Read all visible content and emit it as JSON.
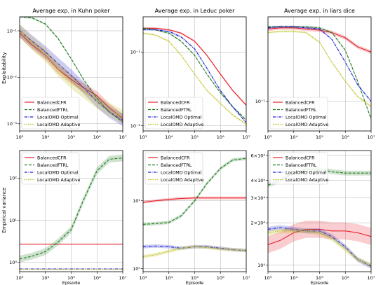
{
  "figure": {
    "ylabel_top": "Exploitability",
    "ylabel_bottom": "Empirical variance",
    "xlabel": "Episode"
  },
  "colors": {
    "BalancedCFR": "#e8202a",
    "BalancedFTRL": "#1e7a1e",
    "LocalOMD Optimal": "#1f1fd0",
    "LocalOMD Adaptive": "#b8b800"
  },
  "chart_data": [
    {
      "type": "line",
      "title": "Average exp. in Kuhn poker",
      "xscale": "log",
      "yscale": "log",
      "xlim": [
        1000,
        10000000
      ],
      "ylim": [
        0.0007,
        0.2
      ],
      "xticks": [
        {
          "v": 1000,
          "label": "10³"
        },
        {
          "v": 10000,
          "label": "10⁴"
        },
        {
          "v": 100000,
          "label": "10⁵"
        },
        {
          "v": 1000000,
          "label": "10⁶"
        },
        {
          "v": 10000000,
          "label": "10⁷"
        }
      ],
      "yticks": [
        {
          "v": 0.001,
          "label": "10⁻³"
        },
        {
          "v": 0.01,
          "label": "10⁻²"
        },
        {
          "v": 0.1,
          "label": "10⁻¹"
        }
      ],
      "grid": true,
      "legend": "lower-left",
      "series": [
        {
          "name": "BalancedCFR",
          "style": "solid",
          "band": 0.25,
          "x": [
            1000,
            3000,
            10000,
            30000,
            100000,
            300000,
            1000000,
            3000000,
            10000000
          ],
          "y": [
            0.09,
            0.05,
            0.03,
            0.015,
            0.009,
            0.006,
            0.004,
            0.0022,
            0.0013
          ]
        },
        {
          "name": "BalancedFTRL",
          "style": "dashed",
          "band": 0.05,
          "x": [
            1000,
            3000,
            10000,
            30000,
            100000,
            300000,
            1000000,
            3000000,
            10000000
          ],
          "y": [
            0.2,
            0.19,
            0.14,
            0.07,
            0.025,
            0.009,
            0.0035,
            0.0018,
            0.0011
          ]
        },
        {
          "name": "LocalOMD Optimal",
          "style": "dashdot",
          "band": 0.35,
          "x": [
            1000,
            3000,
            10000,
            30000,
            100000,
            300000,
            1000000,
            3000000,
            10000000
          ],
          "y": [
            0.1,
            0.06,
            0.035,
            0.02,
            0.011,
            0.006,
            0.003,
            0.0018,
            0.0012
          ]
        },
        {
          "name": "LocalOMD Adaptive",
          "style": "dotted",
          "band": 0.4,
          "x": [
            1000,
            3000,
            10000,
            30000,
            100000,
            300000,
            1000000,
            3000000,
            10000000
          ],
          "y": [
            0.1,
            0.055,
            0.03,
            0.015,
            0.008,
            0.005,
            0.003,
            0.002,
            0.0014
          ]
        }
      ]
    },
    {
      "type": "line",
      "title": "Average exp. in Leduc poker",
      "xscale": "log",
      "yscale": "log",
      "xlim": [
        1000,
        10000000
      ],
      "ylim": [
        0.0085,
        0.3
      ],
      "xticks": [
        {
          "v": 1000,
          "label": "10³"
        },
        {
          "v": 10000,
          "label": "10⁴"
        },
        {
          "v": 100000,
          "label": "10⁵"
        },
        {
          "v": 1000000,
          "label": "10⁶"
        },
        {
          "v": 10000000,
          "label": "10⁷"
        }
      ],
      "yticks": [
        {
          "v": 0.01,
          "label": "10⁻²"
        },
        {
          "v": 0.1,
          "label": "10⁻¹"
        }
      ],
      "grid": true,
      "legend": "lower-left",
      "series": [
        {
          "name": "BalancedCFR",
          "style": "solid",
          "band": 0.03,
          "x": [
            1000,
            3000,
            10000,
            30000,
            100000,
            300000,
            1000000,
            3000000,
            10000000
          ],
          "y": [
            0.21,
            0.21,
            0.2,
            0.18,
            0.14,
            0.09,
            0.05,
            0.03,
            0.019
          ]
        },
        {
          "name": "BalancedFTRL",
          "style": "dashed",
          "band": 0.03,
          "x": [
            1000,
            3000,
            10000,
            30000,
            100000,
            300000,
            1000000,
            3000000,
            10000000
          ],
          "y": [
            0.21,
            0.2,
            0.18,
            0.14,
            0.09,
            0.05,
            0.028,
            0.018,
            0.012
          ]
        },
        {
          "name": "LocalOMD Optimal",
          "style": "dashdot",
          "band": 0.03,
          "x": [
            1000,
            3000,
            10000,
            30000,
            100000,
            300000,
            1000000,
            3000000,
            10000000
          ],
          "y": [
            0.2,
            0.2,
            0.19,
            0.16,
            0.11,
            0.06,
            0.03,
            0.018,
            0.011
          ]
        },
        {
          "name": "LocalOMD Adaptive",
          "style": "dotted",
          "band": 0.03,
          "x": [
            1000,
            3000,
            10000,
            30000,
            100000,
            300000,
            1000000,
            3000000,
            10000000
          ],
          "y": [
            0.18,
            0.17,
            0.14,
            0.09,
            0.05,
            0.03,
            0.02,
            0.014,
            0.0105
          ]
        }
      ]
    },
    {
      "type": "line",
      "title": "Average exp. in liars dice",
      "xscale": "log",
      "yscale": "log",
      "xlim": [
        1000,
        10000000
      ],
      "ylim": [
        0.055,
        0.55
      ],
      "xticks": [
        {
          "v": 1000,
          "label": "10³"
        },
        {
          "v": 10000,
          "label": "10⁴"
        },
        {
          "v": 100000,
          "label": "10⁵"
        },
        {
          "v": 1000000,
          "label": "10⁶"
        },
        {
          "v": 10000000,
          "label": "10⁷"
        }
      ],
      "yticks": [
        {
          "v": 0.1,
          "label": "10⁻¹"
        }
      ],
      "grid": true,
      "legend": "lower-left",
      "series": [
        {
          "name": "BalancedCFR",
          "style": "solid",
          "band": 0.04,
          "x": [
            1000,
            3000,
            10000,
            30000,
            100000,
            300000,
            1000000,
            3000000,
            10000000
          ],
          "y": [
            0.43,
            0.44,
            0.44,
            0.43,
            0.42,
            0.4,
            0.36,
            0.3,
            0.27
          ]
        },
        {
          "name": "BalancedFTRL",
          "style": "dashed",
          "band": 0.02,
          "x": [
            1000,
            3000,
            10000,
            30000,
            100000,
            300000,
            1000000,
            3000000,
            10000000
          ],
          "y": [
            0.45,
            0.45,
            0.45,
            0.45,
            0.44,
            0.4,
            0.28,
            0.15,
            0.07
          ]
        },
        {
          "name": "LocalOMD Optimal",
          "style": "dashdot",
          "band": 0.02,
          "x": [
            1000,
            3000,
            10000,
            30000,
            100000,
            300000,
            1000000,
            3000000,
            10000000
          ],
          "y": [
            0.44,
            0.45,
            0.45,
            0.44,
            0.43,
            0.35,
            0.22,
            0.14,
            0.1
          ]
        },
        {
          "name": "LocalOMD Adaptive",
          "style": "dotted",
          "band": 0.02,
          "x": [
            1000,
            3000,
            10000,
            30000,
            100000,
            300000,
            1000000,
            3000000,
            10000000
          ],
          "y": [
            0.4,
            0.41,
            0.41,
            0.4,
            0.33,
            0.22,
            0.15,
            0.11,
            0.09
          ]
        }
      ]
    },
    {
      "type": "line",
      "xscale": "log",
      "yscale": "log",
      "xlim": [
        1000,
        10000000
      ],
      "ylim": [
        0.6,
        450
      ],
      "xticks": [
        {
          "v": 1000,
          "label": "10³"
        },
        {
          "v": 10000,
          "label": "10⁴"
        },
        {
          "v": 100000,
          "label": "10⁵"
        },
        {
          "v": 1000000,
          "label": "10⁶"
        },
        {
          "v": 10000000,
          "label": "10⁷"
        }
      ],
      "yticks": [
        {
          "v": 1,
          "label": "10⁰"
        },
        {
          "v": 10,
          "label": "10¹"
        },
        {
          "v": 100,
          "label": "10²"
        }
      ],
      "grid": true,
      "legend": "upper-left",
      "series": [
        {
          "name": "BalancedCFR",
          "style": "solid",
          "band": 0.01,
          "x": [
            1000,
            3000,
            10000,
            30000,
            100000,
            300000,
            1000000,
            3000000,
            10000000
          ],
          "y": [
            2.7,
            2.7,
            2.7,
            2.7,
            2.7,
            2.7,
            2.7,
            2.7,
            2.7
          ]
        },
        {
          "name": "BalancedFTRL",
          "style": "dashed",
          "band": 0.2,
          "x": [
            1000,
            3000,
            10000,
            30000,
            100000,
            300000,
            1000000,
            3000000,
            10000000
          ],
          "y": [
            1.2,
            1.4,
            1.8,
            3,
            6,
            30,
            150,
            280,
            300
          ]
        },
        {
          "name": "LocalOMD Optimal",
          "style": "dashdot",
          "band": 0.01,
          "x": [
            1000,
            3000,
            10000,
            30000,
            100000,
            300000,
            1000000,
            3000000,
            10000000
          ],
          "y": [
            0.7,
            0.7,
            0.7,
            0.7,
            0.7,
            0.7,
            0.7,
            0.7,
            0.7
          ]
        },
        {
          "name": "LocalOMD Adaptive",
          "style": "dotted",
          "band": 0.01,
          "x": [
            1000,
            3000,
            10000,
            30000,
            100000,
            300000,
            1000000,
            3000000,
            10000000
          ],
          "y": [
            0.68,
            0.68,
            0.68,
            0.68,
            0.68,
            0.68,
            0.68,
            0.68,
            0.68
          ]
        }
      ]
    },
    {
      "type": "line",
      "xscale": "log",
      "yscale": "log",
      "xlim": [
        1000,
        10000000
      ],
      "ylim": [
        0.9,
        55
      ],
      "xticks": [
        {
          "v": 1000,
          "label": "10³"
        },
        {
          "v": 10000,
          "label": "10⁴"
        },
        {
          "v": 100000,
          "label": "10⁵"
        },
        {
          "v": 1000000,
          "label": "10⁶"
        },
        {
          "v": 10000000,
          "label": "10⁷"
        }
      ],
      "yticks": [
        {
          "v": 1,
          "label": "10⁰"
        },
        {
          "v": 10,
          "label": "10¹"
        }
      ],
      "grid": true,
      "legend": "upper-left",
      "series": [
        {
          "name": "BalancedCFR",
          "style": "solid",
          "band": 0.05,
          "x": [
            1000,
            3000,
            10000,
            30000,
            100000,
            300000,
            1000000,
            3000000,
            10000000
          ],
          "y": [
            9.5,
            10,
            10.5,
            10.8,
            11,
            11,
            11,
            11,
            11
          ]
        },
        {
          "name": "BalancedFTRL",
          "style": "dashed",
          "band": 0.06,
          "x": [
            1000,
            3000,
            10000,
            30000,
            100000,
            300000,
            1000000,
            3000000,
            10000000
          ],
          "y": [
            4.5,
            4.6,
            4.8,
            6,
            10,
            18,
            30,
            40,
            42
          ]
        },
        {
          "name": "LocalOMD Optimal",
          "style": "dashdot",
          "band": 0.06,
          "x": [
            1000,
            3000,
            10000,
            30000,
            100000,
            300000,
            1000000,
            3000000,
            10000000
          ],
          "y": [
            2.1,
            2.15,
            2.1,
            2.0,
            2.1,
            2.1,
            2.0,
            1.9,
            1.85
          ]
        },
        {
          "name": "LocalOMD Adaptive",
          "style": "dotted",
          "band": 0.06,
          "x": [
            1000,
            3000,
            10000,
            30000,
            100000,
            300000,
            1000000,
            3000000,
            10000000
          ],
          "y": [
            1.5,
            1.6,
            1.8,
            2.0,
            2.1,
            2.05,
            1.95,
            1.9,
            1.85
          ]
        }
      ]
    },
    {
      "type": "line",
      "xscale": "log",
      "yscale": "log",
      "xlim": [
        1000,
        10000000
      ],
      "ylim": [
        9000,
        65000
      ],
      "xticks": [
        {
          "v": 1000,
          "label": "10³"
        },
        {
          "v": 10000,
          "label": "10⁴"
        },
        {
          "v": 100000,
          "label": "10⁵"
        },
        {
          "v": 1000000,
          "label": "10⁶"
        },
        {
          "v": 10000000,
          "label": "10⁷"
        }
      ],
      "yticks": [
        {
          "v": 10000,
          "label": "10⁴"
        },
        {
          "v": 20000,
          "label": "2×10⁴"
        },
        {
          "v": 30000,
          "label": "3×10⁴"
        },
        {
          "v": 40000,
          "label": "4×10⁴"
        },
        {
          "v": 60000,
          "label": "6×10⁴"
        }
      ],
      "grid": true,
      "legend": "upper-left",
      "series": [
        {
          "name": "BalancedCFR",
          "style": "solid",
          "band": 0.15,
          "x": [
            1000,
            3000,
            10000,
            30000,
            100000,
            300000,
            1000000,
            3000000,
            10000000
          ],
          "y": [
            14000,
            15000,
            17000,
            18000,
            18000,
            17500,
            17500,
            17000,
            16000
          ]
        },
        {
          "name": "BalancedFTRL",
          "style": "dashed",
          "band": 0.04,
          "x": [
            1000,
            3000,
            10000,
            30000,
            100000,
            300000,
            1000000,
            3000000,
            10000000
          ],
          "y": [
            37000,
            40000,
            45000,
            48000,
            48000,
            46000,
            45000,
            45000,
            45000
          ]
        },
        {
          "name": "LocalOMD Optimal",
          "style": "dashdot",
          "band": 0.04,
          "x": [
            1000,
            3000,
            10000,
            30000,
            100000,
            300000,
            1000000,
            3000000,
            10000000
          ],
          "y": [
            18000,
            18500,
            18000,
            17500,
            17500,
            16000,
            13500,
            11000,
            9800
          ]
        },
        {
          "name": "LocalOMD Adaptive",
          "style": "dotted",
          "band": 0.04,
          "x": [
            1000,
            3000,
            10000,
            30000,
            100000,
            300000,
            1000000,
            3000000,
            10000000
          ],
          "y": [
            17000,
            17500,
            17500,
            17500,
            17000,
            15500,
            13000,
            11000,
            10000
          ]
        }
      ]
    }
  ]
}
